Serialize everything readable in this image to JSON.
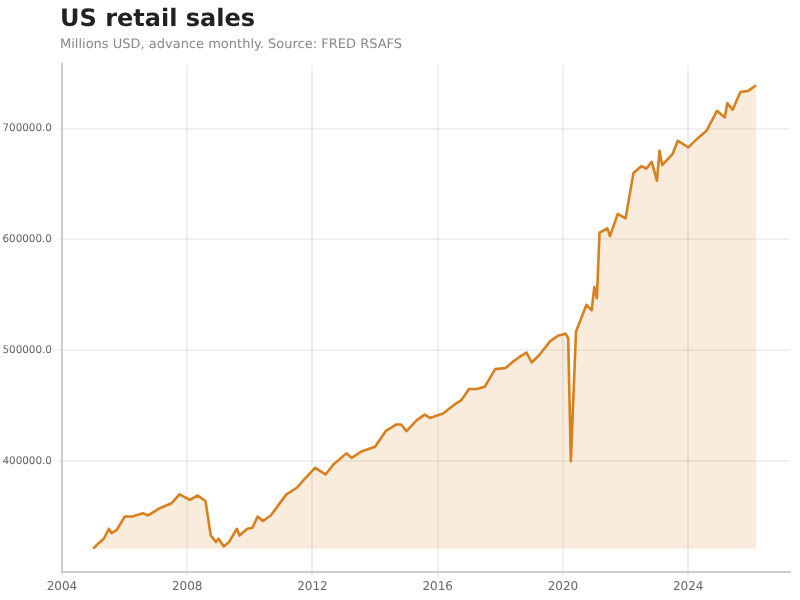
{
  "chart_data": {
    "type": "area",
    "title": "US retail sales",
    "subtitle": "Millions USD, advance monthly. Source: FRED RSAFS",
    "x": [
      "2005-01",
      "2005-03",
      "2005-05",
      "2005-07",
      "2005-08",
      "2005-10",
      "2006-01",
      "2006-04",
      "2006-08",
      "2006-10",
      "2007-02",
      "2007-07",
      "2007-10",
      "2008-02",
      "2008-05",
      "2008-08",
      "2008-10",
      "2008-12",
      "2009-01",
      "2009-03",
      "2009-05",
      "2009-08",
      "2009-09",
      "2009-12",
      "2010-02",
      "2010-04",
      "2010-06",
      "2010-09",
      "2011-03",
      "2011-07",
      "2011-10",
      "2012-02",
      "2012-06",
      "2012-09",
      "2013-02",
      "2013-04",
      "2013-08",
      "2014-01",
      "2014-05",
      "2014-09",
      "2014-11",
      "2015-01",
      "2015-05",
      "2015-08",
      "2015-10",
      "2016-03",
      "2016-08",
      "2016-10",
      "2017-01",
      "2017-04",
      "2017-07",
      "2017-11",
      "2018-03",
      "2018-06",
      "2018-09",
      "2018-11",
      "2019-01",
      "2019-04",
      "2019-08",
      "2019-11",
      "2020-02",
      "2020-03",
      "2020-04",
      "2020-06",
      "2020-08",
      "2020-10",
      "2020-12",
      "2021-01",
      "2021-02",
      "2021-03",
      "2021-06",
      "2021-07",
      "2021-10",
      "2022-01",
      "2022-04",
      "2022-07",
      "2022-09",
      "2022-11",
      "2023-01",
      "2023-02",
      "2023-03",
      "2023-07",
      "2023-09",
      "2024-01",
      "2024-05",
      "2024-08",
      "2024-12",
      "2025-03",
      "2025-04",
      "2025-06",
      "2025-09",
      "2025-12",
      "2026-03"
    ],
    "series": [
      {
        "color": "#d9801e",
        "values": [
          321000,
          326000,
          330000,
          339000,
          335000,
          338000,
          350000,
          350000,
          353000,
          351000,
          357000,
          362000,
          370000,
          365000,
          369000,
          364000,
          333000,
          327000,
          330000,
          323000,
          327000,
          339000,
          333000,
          339000,
          340000,
          350000,
          346000,
          351000,
          370000,
          376000,
          384000,
          394000,
          388000,
          397000,
          407000,
          403000,
          409000,
          413000,
          427000,
          433000,
          433000,
          427000,
          437000,
          442000,
          439000,
          443000,
          452000,
          455000,
          465000,
          465000,
          467000,
          483000,
          484000,
          490000,
          495000,
          498000,
          489000,
          496000,
          508000,
          513000,
          515000,
          511000,
          400000,
          517000,
          529000,
          541000,
          536000,
          557000,
          547000,
          606000,
          610000,
          603000,
          623000,
          619000,
          660000,
          666000,
          664000,
          670000,
          653000,
          680000,
          667000,
          677000,
          689000,
          683000,
          692000,
          698000,
          716000,
          710000,
          723000,
          717000,
          733000,
          734000,
          739000
        ]
      }
    ],
    "xlim": [
      "2004-01",
      "2027-04"
    ],
    "xticks": [
      "2004",
      "2008",
      "2012",
      "2016",
      "2020",
      "2024"
    ],
    "ylim": [
      300000,
      758000
    ],
    "yticks": [
      {
        "value": 400000,
        "label": "400000.0"
      },
      {
        "value": 500000,
        "label": "500000.0"
      },
      {
        "value": 600000,
        "label": "600000.0"
      },
      {
        "value": 700000,
        "label": "700000.0"
      }
    ],
    "grid": true,
    "legend": false
  }
}
